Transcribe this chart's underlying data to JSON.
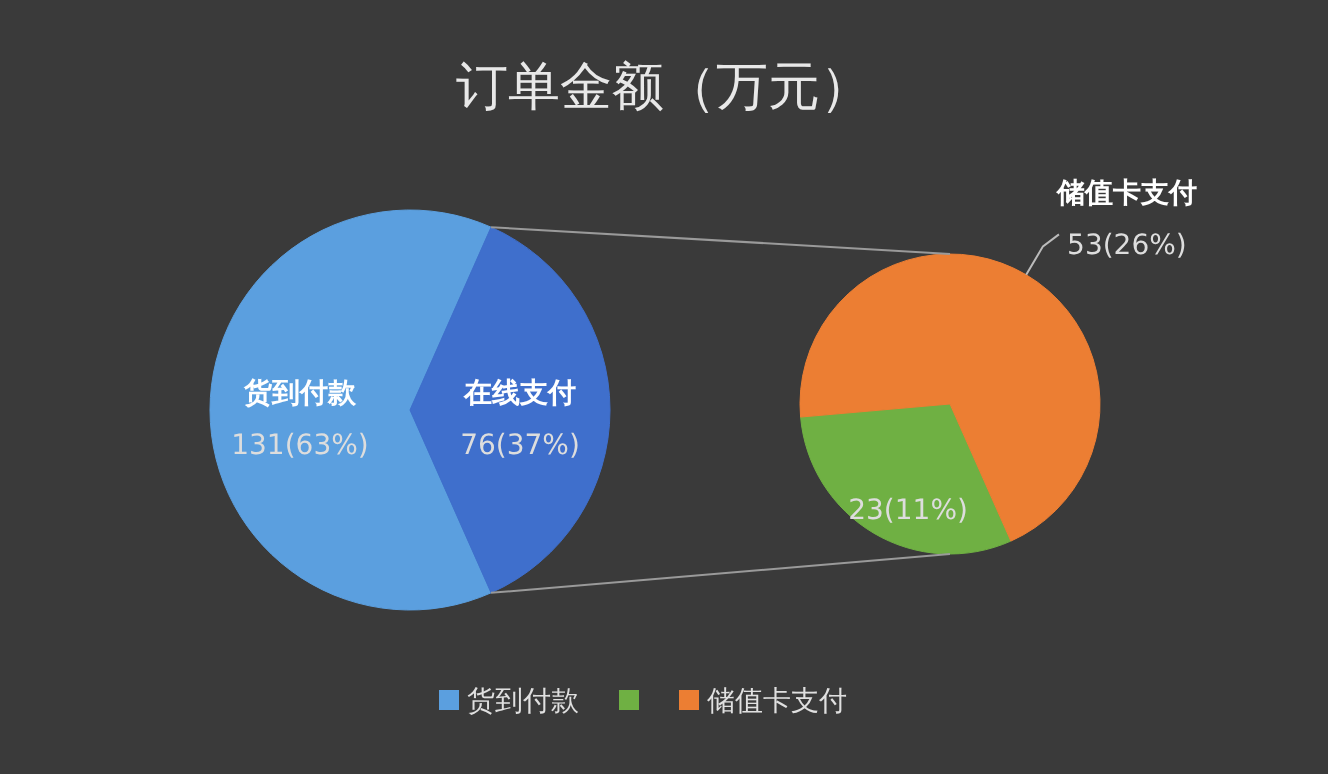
{
  "chart_data": [
    {
      "type": "pie",
      "title": "订单金额（万元）",
      "categories": [
        "货到付款",
        "在线支付"
      ],
      "values": [
        131,
        76
      ],
      "colors": [
        "#5b9fdf",
        "#3f6fcc"
      ],
      "value_labels": [
        "131(63%)",
        "76(37%)"
      ],
      "legend": "bottom"
    },
    {
      "type": "pie",
      "categories": [
        null,
        "储值卡支付"
      ],
      "values": [
        23,
        53
      ],
      "colors": [
        "#6fb043",
        "#ec7e33"
      ],
      "value_labels": [
        "23(11%)",
        "53(26%)"
      ],
      "legend": "bottom"
    }
  ]
}
